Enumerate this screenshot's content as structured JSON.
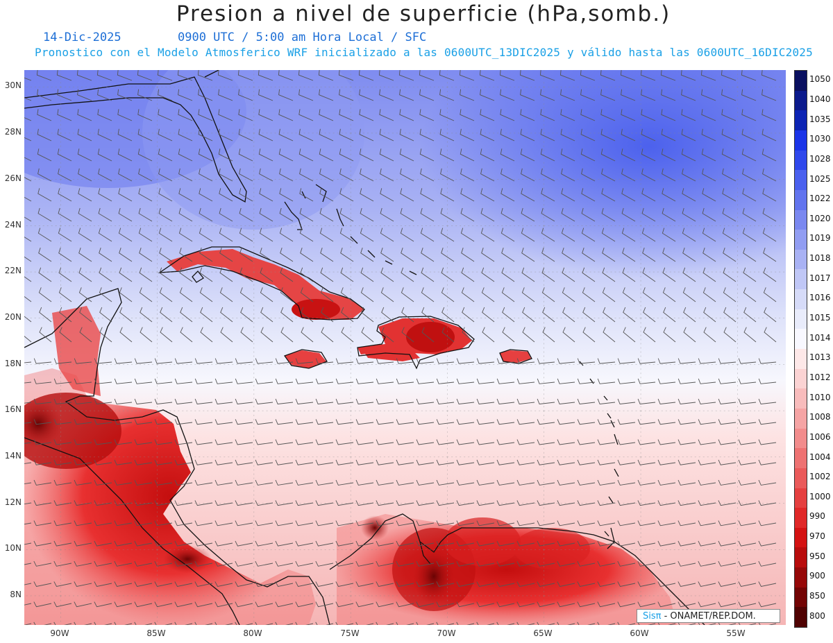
{
  "title": "Presion a nivel de superficie (hPa,somb.)",
  "date": "14-Dic-2025",
  "time_info": "0900 UTC / 5:00 am Hora Local / SFC",
  "model_info": "Pronostico con el Modelo Atmosferico WRF inicializado a las 0600UTC_13DIC2025 y válido hasta las  0600UTC_16DIC2025",
  "lat_labels": [
    "30N",
    "28N",
    "26N",
    "24N",
    "22N",
    "20N",
    "18N",
    "16N",
    "14N",
    "12N",
    "10N",
    "8N"
  ],
  "lon_labels": [
    "90W",
    "85W",
    "80W",
    "75W",
    "70W",
    "65W",
    "60W",
    "55W"
  ],
  "legend": {
    "levels": [
      "1050",
      "1040",
      "1035",
      "1030",
      "1028",
      "1025",
      "1022",
      "1020",
      "1019",
      "1018",
      "1017",
      "1016",
      "1015",
      "1014",
      "1013",
      "1012",
      "1010",
      "1008",
      "1006",
      "1004",
      "1002",
      "1000",
      "990",
      "970",
      "950",
      "900",
      "850",
      "800"
    ],
    "colors": [
      "#0a1060",
      "#0b1a8c",
      "#0c24b4",
      "#1a34e8",
      "#2f48ec",
      "#4a60ee",
      "#6274ee",
      "#7a88f0",
      "#919df2",
      "#a9b2f4",
      "#c0c7f6",
      "#d6dbf8",
      "#e9ecfb",
      "#f8f8ff",
      "#fde8e8",
      "#fbd3d3",
      "#f8bcbc",
      "#f5a4a4",
      "#f28c8c",
      "#ee7272",
      "#ea5a5a",
      "#e54040",
      "#e02828",
      "#d41212",
      "#b80c0c",
      "#960808",
      "#730404",
      "#500202"
    ]
  },
  "credit_highlight": "Sisπ",
  "credit_text": " - ONAMET/REP.DOM."
}
